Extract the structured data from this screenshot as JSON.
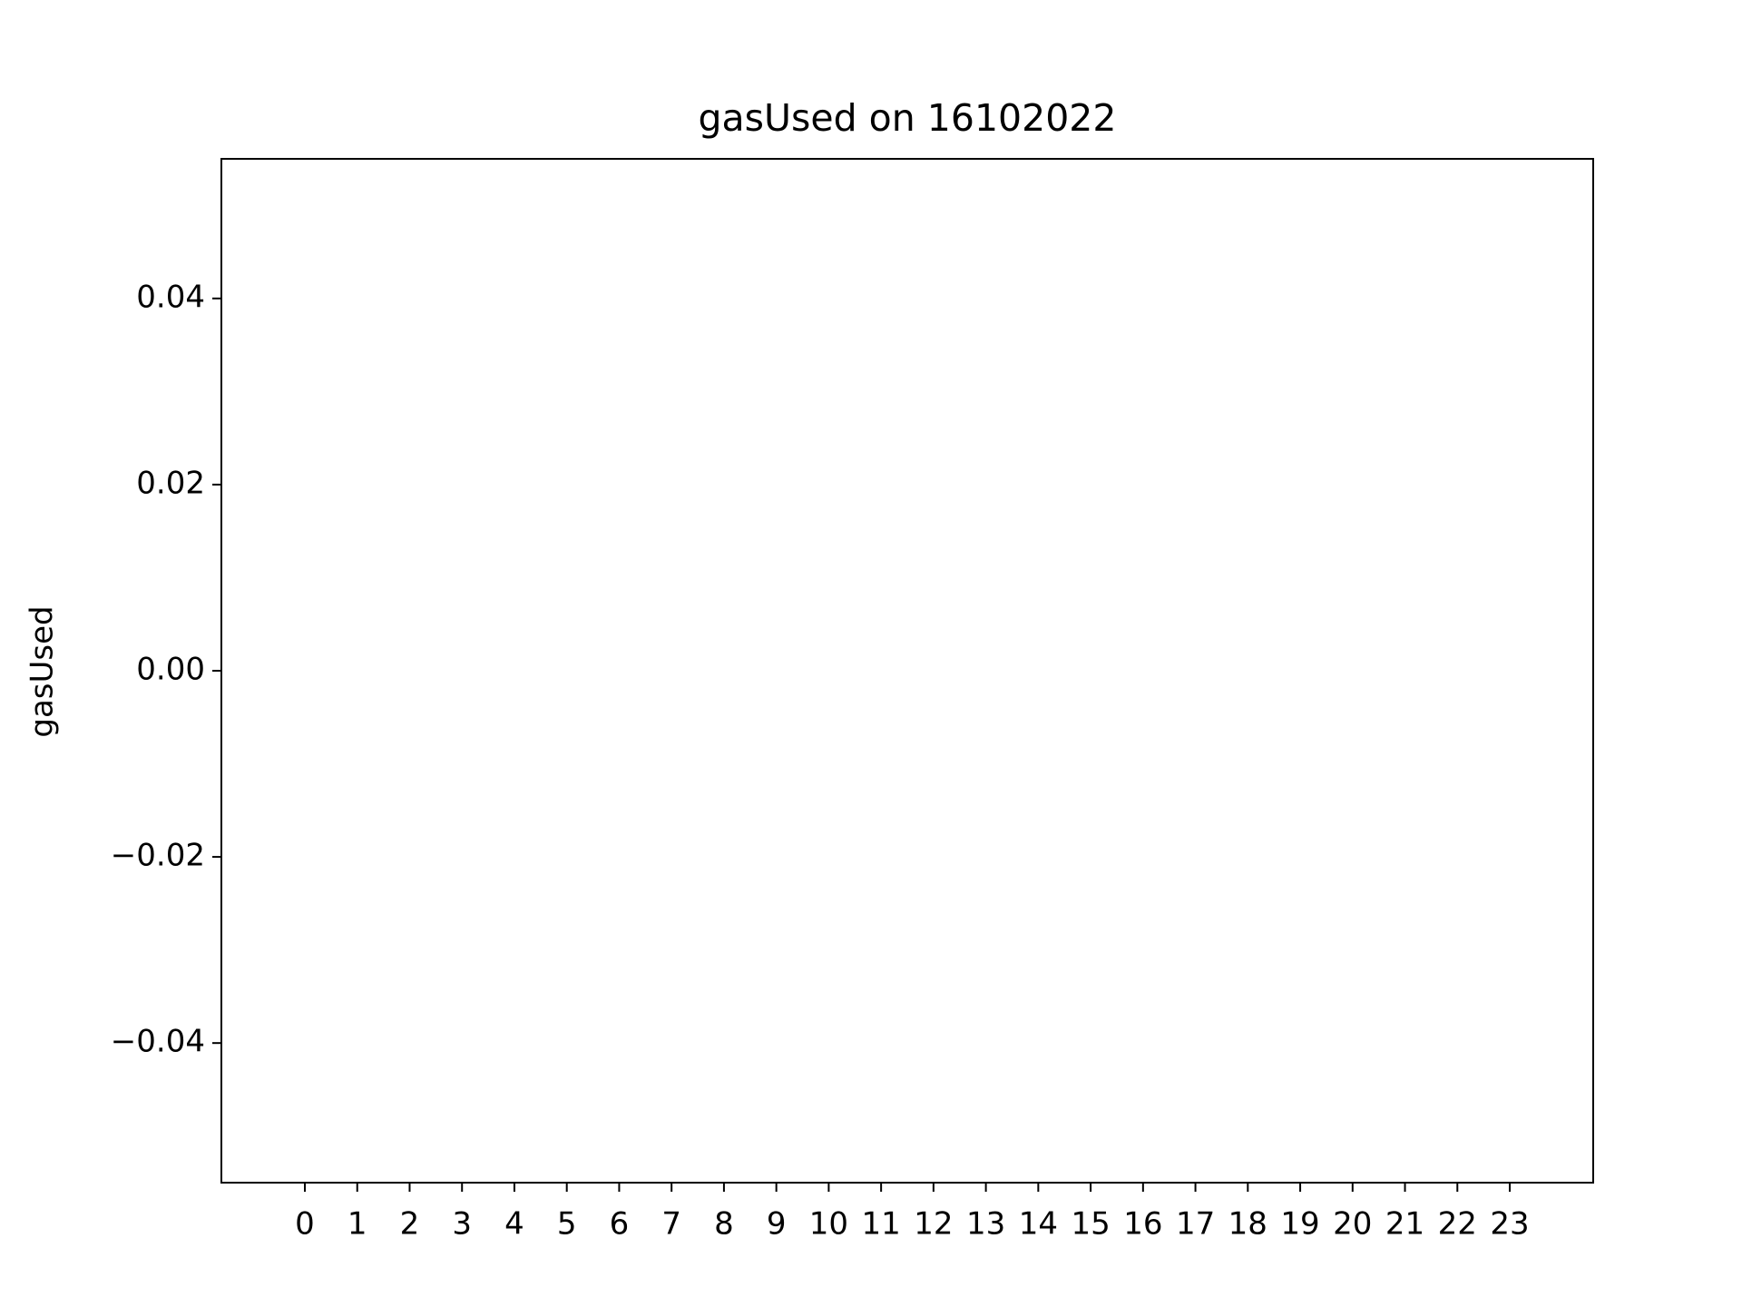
{
  "chart_data": {
    "type": "bar",
    "title": "gasUsed on 16102022",
    "ylabel": "gasUsed",
    "categories": [
      "0",
      "1",
      "2",
      "3",
      "4",
      "5",
      "6",
      "7",
      "8",
      "9",
      "10",
      "11",
      "12",
      "13",
      "14",
      "15",
      "16",
      "17",
      "18",
      "19",
      "20",
      "21",
      "22",
      "23"
    ],
    "values": [
      0,
      0,
      0,
      0,
      0,
      0,
      0,
      0,
      0,
      0,
      0,
      0,
      0,
      0,
      0,
      0,
      0,
      0,
      0,
      0,
      0,
      0,
      0,
      0
    ],
    "color": "#1f77b4",
    "ylim": [
      -0.055,
      0.055
    ],
    "yticks": [
      {
        "value": -0.04,
        "label": "−0.04"
      },
      {
        "value": -0.02,
        "label": "−0.02"
      },
      {
        "value": 0,
        "label": "0.00"
      },
      0.02,
      0.04
    ],
    "grid": false
  }
}
